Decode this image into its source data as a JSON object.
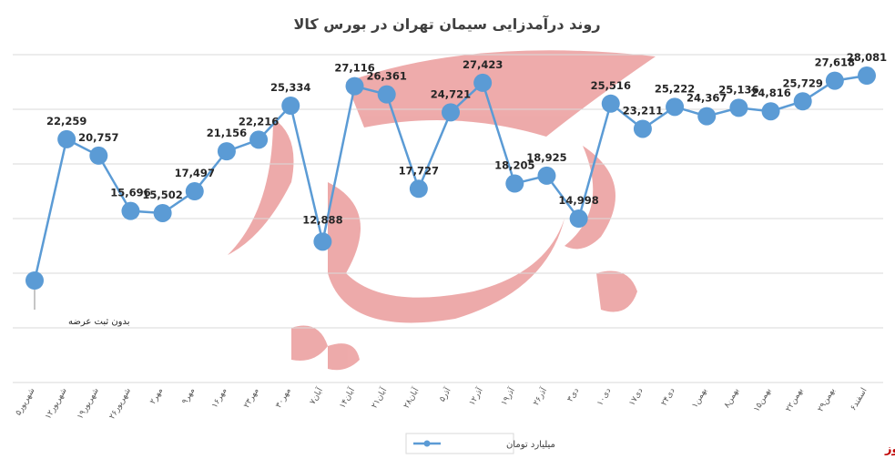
{
  "brand": {
    "name": "بورس نیوز",
    "color": "#c00000"
  },
  "chart_data": {
    "type": "line",
    "title": "روند درآمدزایی سیمان تهران در بورس کالا",
    "xlabel": "",
    "ylabel": "",
    "ylim": [
      0,
      30000
    ],
    "grid": true,
    "legend_position": "bottom",
    "line_color": "#5b9bd5",
    "categories": [
      "۵شهریور",
      "۱۲شهریور",
      "۱۹شهریور",
      "۲۶شهریور",
      "۲مهر",
      "۹مهر",
      "۱۶مهر",
      "۲۳مهر",
      "۳۰مهر",
      "۷آبان",
      "۱۴آبان",
      "۲۱آبان",
      "۲۸آبان",
      "۵آذر",
      "۱۲آذر",
      "۱۹آذر",
      "۲۶آذر",
      "۳دی",
      "۱۰دی",
      "۱۷دی",
      "۲۴دی",
      "۱بهمن",
      "۸بهمن",
      "۱۵بهمن",
      "۲۲بهمن",
      "۲۹بهمن",
      "۶اسفند"
    ],
    "series": [
      {
        "name": "میلیارد تومان",
        "values": [
          null,
          22259,
          20757,
          15696,
          15502,
          17497,
          21156,
          22216,
          25334,
          12888,
          27116,
          26361,
          17727,
          24721,
          27423,
          18205,
          18925,
          14998,
          25516,
          23211,
          25222,
          24367,
          25136,
          24816,
          25729,
          27618,
          28081
        ],
        "labels": [
          "بدون ثبت عرضه",
          "22,259",
          "20,757",
          "15,696",
          "15,502",
          "17,497",
          "21,156",
          "22,216",
          "25,334",
          "12,888",
          "27,116",
          "26,361",
          "17,727",
          "24,721",
          "27,423",
          "18,205",
          "18,925",
          "14,998",
          "25,516",
          "23,211",
          "25,222",
          "24,367",
          "25,136",
          "24,816",
          "25,729",
          "27,618",
          "28,081"
        ]
      }
    ]
  }
}
